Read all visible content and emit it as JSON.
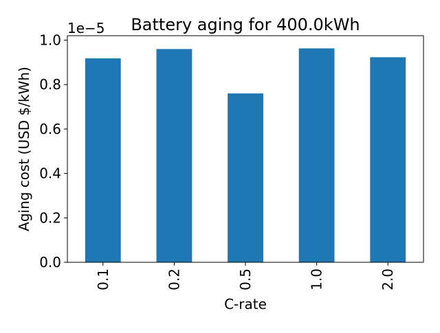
{
  "chart_data": {
    "type": "bar",
    "title": "Battery aging for 400.0kWh",
    "xlabel": "C-rate",
    "ylabel": "Aging cost (USD $/kWh)",
    "y_offset_label": "1e−5",
    "y_scale_factor": 1e-05,
    "categories": [
      "0.1",
      "0.2",
      "0.5",
      "1.0",
      "2.0"
    ],
    "values": [
      9.18e-06,
      9.6e-06,
      7.6e-06,
      9.63e-06,
      9.23e-06
    ],
    "ylim": [
      0,
      1.02e-05
    ],
    "yticks": [
      0.0,
      0.2,
      0.4,
      0.6,
      0.8,
      1.0
    ],
    "ytick_labels": [
      "0.0",
      "0.2",
      "0.4",
      "0.6",
      "0.8",
      "1.0"
    ],
    "bar_color": "#1f77b4",
    "grid": false,
    "legend": "none"
  }
}
